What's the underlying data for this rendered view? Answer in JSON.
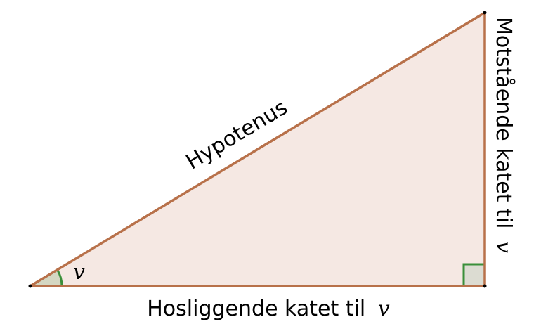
{
  "colors": {
    "triangle_fill": "#f5e8e3",
    "triangle_edge": "#b8714a",
    "angle_marker": "#3a8f3a",
    "right_angle_fill": "#dcdcd2",
    "vertex": "#000000"
  },
  "labels": {
    "hypotenuse": "Hypotenus",
    "opposite_text": "Motstående katet til",
    "adjacent_text": "Hosliggende katet til",
    "angle_symbol": "v"
  }
}
